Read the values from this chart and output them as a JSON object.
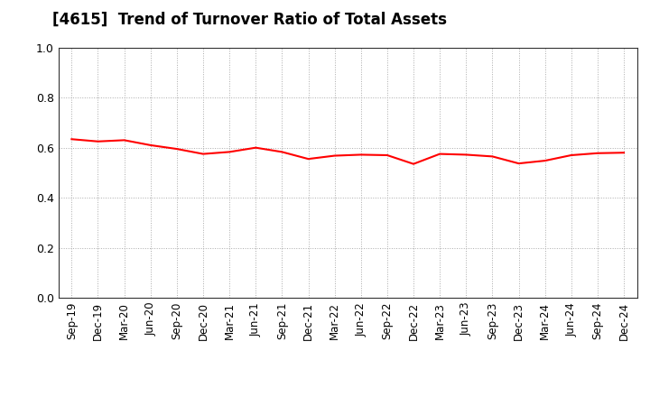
{
  "title": "[4615]  Trend of Turnover Ratio of Total Assets",
  "title_fontsize": 12,
  "line_color": "#FF0000",
  "line_width": 1.5,
  "background_color": "#FFFFFF",
  "grid_color": "#AAAAAA",
  "ylim": [
    0.0,
    1.0
  ],
  "yticks": [
    0.0,
    0.2,
    0.4,
    0.6,
    0.8,
    1.0
  ],
  "x_labels": [
    "Sep-19",
    "Dec-19",
    "Mar-20",
    "Jun-20",
    "Sep-20",
    "Dec-20",
    "Mar-21",
    "Jun-21",
    "Sep-21",
    "Dec-21",
    "Mar-22",
    "Jun-22",
    "Sep-22",
    "Dec-22",
    "Mar-23",
    "Jun-23",
    "Sep-23",
    "Dec-23",
    "Mar-24",
    "Jun-24",
    "Sep-24",
    "Dec-24"
  ],
  "values": [
    0.634,
    0.625,
    0.63,
    0.61,
    0.595,
    0.575,
    0.583,
    0.6,
    0.583,
    0.555,
    0.568,
    0.572,
    0.57,
    0.535,
    0.575,
    0.572,
    0.565,
    0.537,
    0.548,
    0.57,
    0.578,
    0.58
  ]
}
